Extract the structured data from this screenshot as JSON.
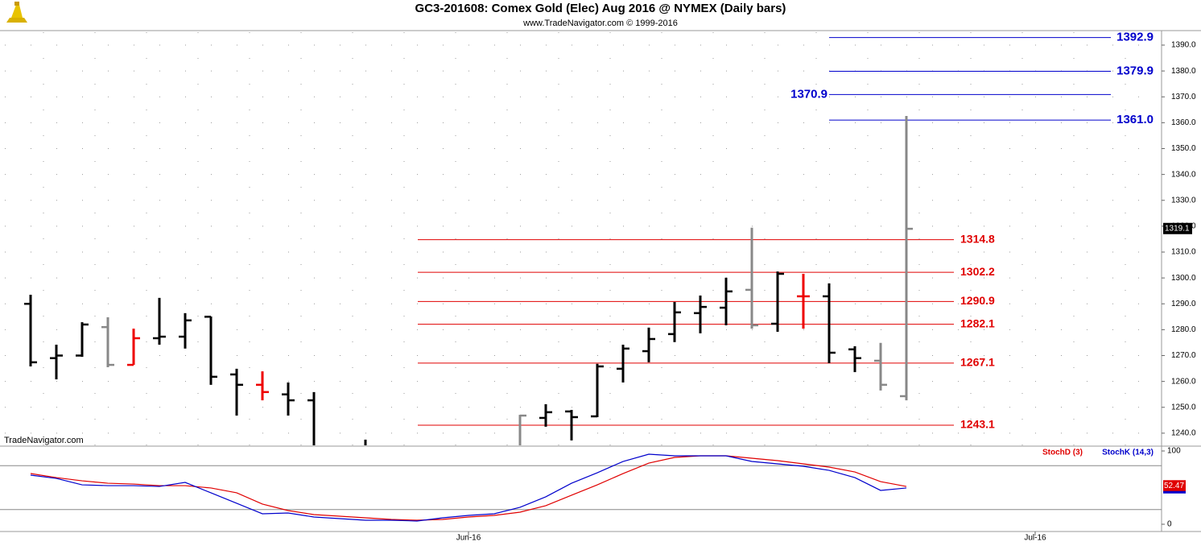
{
  "chart_data": [
    {
      "type": "ohlc",
      "title": "GC3-201608:  Comex Gold (Elec) Aug 2016 @ NYMEX  (Daily bars)",
      "subtitle": "www.TradeNavigator.com © 1999-2016",
      "watermark": "TradeNavigator.com",
      "categories": [
        null,
        null,
        null,
        null,
        null,
        null,
        null,
        null,
        null,
        null,
        null,
        null,
        null,
        null,
        null,
        null,
        null,
        "Jun-16",
        null,
        null,
        null,
        null,
        null,
        null,
        null,
        null,
        null,
        null,
        null,
        null,
        null,
        null,
        null,
        null,
        null,
        null,
        null,
        null,
        null,
        "Jul-16",
        null,
        null,
        null,
        null
      ],
      "open": [
        1290,
        1269,
        1270,
        1281,
        1266.4,
        1276.7,
        1277.3,
        1285,
        1262.7,
        1258.7,
        1255,
        1252.7,
        null,
        1232,
        null,
        null,
        null,
        null,
        null,
        1233,
        1245.9,
        1248.4,
        1246.5,
        1264.9,
        1271.7,
        1278.3,
        1286.4,
        1288.5,
        1295.4,
        1282.3,
        1292.9,
        1292.9,
        1272.4,
        1268,
        1254.3,
        null,
        null,
        null,
        null,
        null,
        null,
        null,
        null,
        null
      ],
      "high": [
        1293.5,
        1274.2,
        1282.9,
        1284.8,
        1280.4,
        1292.3,
        1286.4,
        1285.1,
        1264.9,
        1263.9,
        1259.6,
        1255.9,
        null,
        1237.5,
        null,
        null,
        null,
        null,
        null,
        1247.1,
        1251.2,
        1249,
        1266.8,
        1274.2,
        1280.8,
        1290.7,
        1293.2,
        1300.1,
        1319.4,
        1302.5,
        1301.6,
        1297.9,
        1273.6,
        1274.9,
        1362.6,
        null,
        null,
        null,
        null,
        null,
        null,
        null,
        null,
        null
      ],
      "low": [
        1265.8,
        1260.8,
        1269.5,
        1265.5,
        1266.4,
        1274.2,
        1272.7,
        1258.7,
        1246.8,
        1252.7,
        1246.8,
        1230,
        null,
        1225,
        null,
        null,
        null,
        null,
        null,
        1232,
        1242.5,
        1237.2,
        1246.2,
        1259.6,
        1267.4,
        1275.2,
        1278.6,
        1281.7,
        1280.4,
        1279.2,
        1280.4,
        1267.1,
        1263.6,
        1256.5,
        1252.7,
        null,
        null,
        null,
        null,
        null,
        null,
        null,
        null,
        null
      ],
      "close": [
        1267.4,
        1270,
        1282,
        1266.4,
        1276.7,
        1277.3,
        1283.6,
        1261.8,
        1258.7,
        1255.9,
        1252.7,
        1233,
        null,
        1230,
        null,
        null,
        null,
        null,
        null,
        1246.8,
        1248.1,
        1246.2,
        1265.8,
        1272.7,
        1276.4,
        1286.7,
        1288.8,
        1294.8,
        1281.7,
        1301.6,
        1292.9,
        1271.1,
        1269,
        1258.7,
        1319,
        null,
        null,
        null,
        null,
        null,
        null,
        null,
        null,
        null
      ],
      "bar_colors": [
        "#000",
        "#000",
        "#000",
        "#888",
        "#e00",
        "#000",
        "#000",
        "#000",
        "#000",
        "#e00",
        "#000",
        "#000",
        null,
        "#000",
        null,
        null,
        null,
        null,
        null,
        "#888",
        "#000",
        "#000",
        "#000",
        "#000",
        "#000",
        "#000",
        "#000",
        "#000",
        "#888",
        "#000",
        "#e00",
        "#000",
        "#000",
        "#888",
        "#888",
        null,
        null,
        null,
        null,
        null,
        null,
        null,
        null,
        null
      ],
      "ylim": [
        1235.3,
        1395.6
      ],
      "yticks": [
        {
          "value": 1240,
          "label": "1240.0"
        },
        {
          "value": 1250,
          "label": "1250.0"
        },
        {
          "value": 1260,
          "label": "1260.0"
        },
        {
          "value": 1270,
          "label": "1270.0"
        },
        {
          "value": 1280,
          "label": "1280.0"
        },
        {
          "value": 1290,
          "label": "1290.0"
        },
        {
          "value": 1300,
          "label": "1300.0"
        },
        {
          "value": 1310,
          "label": "1310.0"
        },
        {
          "value": 1320,
          "label": "1320.0"
        },
        {
          "value": 1330,
          "label": "1330.0"
        },
        {
          "value": 1340,
          "label": "1340.0"
        },
        {
          "value": 1350,
          "label": "1350.0"
        },
        {
          "value": 1360,
          "label": "1360.0"
        },
        {
          "value": 1370,
          "label": "1370.0"
        },
        {
          "value": 1380,
          "label": "1380.0"
        },
        {
          "value": 1390,
          "label": "1390.0"
        }
      ],
      "grid": true,
      "red_levels": [
        1314.8,
        1302.2,
        1290.9,
        1282.1,
        1267.1,
        1243.1
      ],
      "red_color": "#e00000",
      "blue_levels": [
        1392.9,
        1379.9,
        1370.9,
        {
          "value": 1361,
          "label": "1361.0"
        }
      ],
      "blue_color": "#0000cc",
      "last_price": 1319.1
    },
    {
      "type": "line",
      "series": [
        {
          "name": "StochD (3)",
          "color": "#e00000",
          "values": [
            69.2,
            63.7,
            59.3,
            56.0,
            54.9,
            52.7,
            52.7,
            49.5,
            42.9,
            27.5,
            18.7,
            13.2,
            11.0,
            8.8,
            6.6,
            5.5,
            6.6,
            9.9,
            12.1,
            16.5,
            25.3,
            39.6,
            53.8,
            69.2,
            83.5,
            91.2,
            93.4,
            93.4,
            90.1,
            86.8,
            82.4,
            78.0,
            71.4,
            58.2,
            51.6,
            null,
            null,
            null,
            null,
            null,
            null,
            null,
            null,
            null
          ]
        },
        {
          "name": "StochK (14,3)",
          "color": "#0000cc",
          "values": [
            67.0,
            62.6,
            53.8,
            52.7,
            52.7,
            51.6,
            57.1,
            42.9,
            28.6,
            14.3,
            15.4,
            9.9,
            7.7,
            5.5,
            5.5,
            4.4,
            8.8,
            12.1,
            14.3,
            23.1,
            37.4,
            56.0,
            70.3,
            85.7,
            95.6,
            93.4,
            93.4,
            93.4,
            85.7,
            82.4,
            79.1,
            73.6,
            63.7,
            46.2,
            49.5,
            null,
            null,
            null,
            null,
            null,
            null,
            null,
            null,
            null
          ]
        }
      ],
      "ylim": [
        -9.9,
        105.5
      ],
      "yticks": [
        0,
        100
      ],
      "levels": [
        20,
        80
      ],
      "last_value": 52.47
    }
  ]
}
